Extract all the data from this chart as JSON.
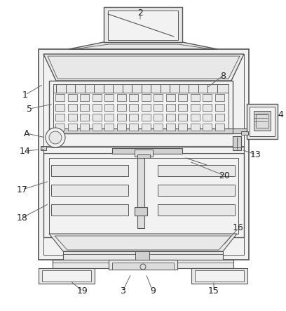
{
  "bg_color": "#ffffff",
  "line_color": "#555555",
  "grid_fill": "#e8e8e8",
  "body_fill": "#f2f2f2",
  "dark_fill": "#d0d0d0",
  "medium_fill": "#dcdcdc"
}
